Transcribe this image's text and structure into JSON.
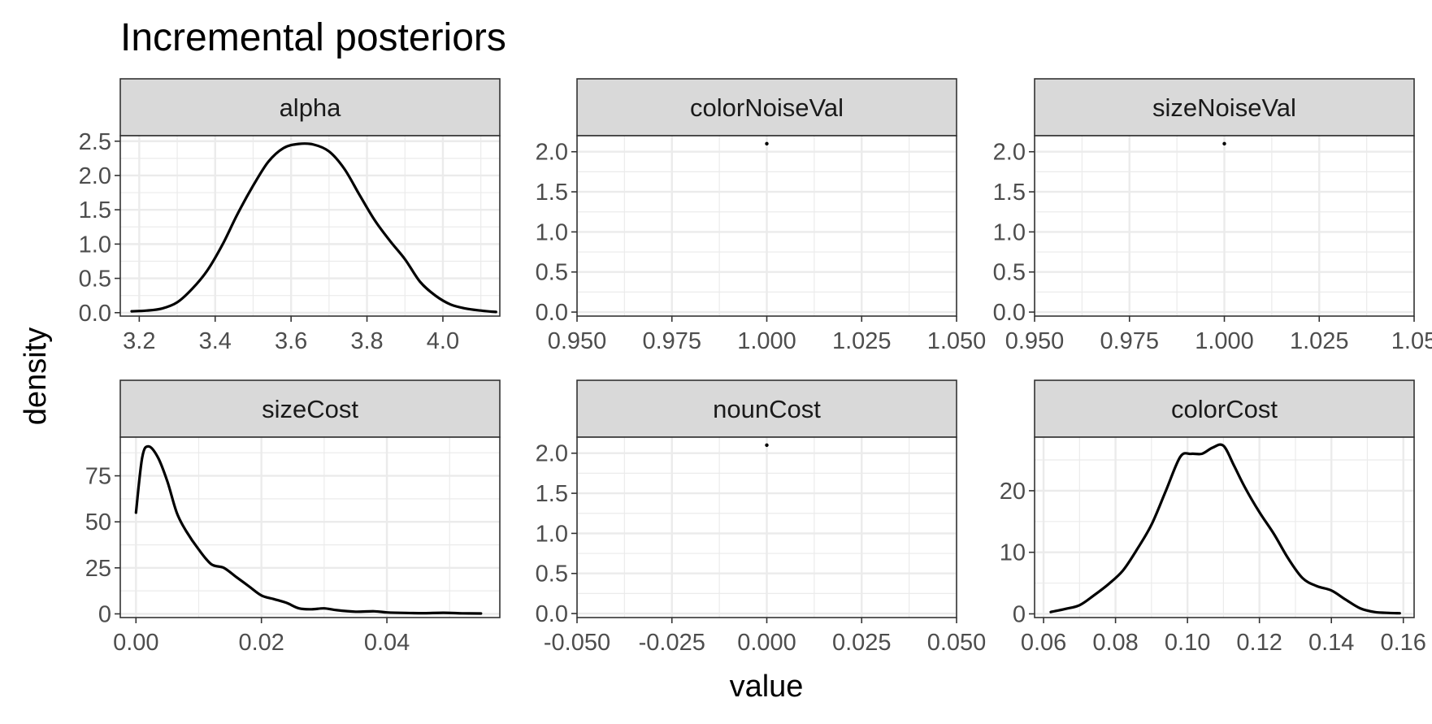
{
  "chart": {
    "title": "Incremental posteriors",
    "xlabel": "value",
    "ylabel": "density"
  },
  "chart_data": [
    {
      "type": "line",
      "facet": "alpha",
      "xlim": [
        3.15,
        4.15
      ],
      "ylim": [
        -0.05,
        2.58
      ],
      "xticks": [
        3.2,
        3.4,
        3.6,
        3.8,
        4.0
      ],
      "xtick_labels": [
        "3.2",
        "3.4",
        "3.6",
        "3.8",
        "4.0"
      ],
      "yticks": [
        0,
        0.5,
        1,
        1.5,
        2,
        2.5
      ],
      "ytick_labels": [
        "0.0",
        "0.5",
        "1.0",
        "1.5",
        "2.0",
        "2.5"
      ],
      "x": [
        3.18,
        3.22,
        3.26,
        3.3,
        3.34,
        3.38,
        3.42,
        3.46,
        3.5,
        3.54,
        3.58,
        3.62,
        3.66,
        3.7,
        3.74,
        3.78,
        3.82,
        3.86,
        3.9,
        3.94,
        3.98,
        4.02,
        4.06,
        4.1,
        4.14
      ],
      "y": [
        0.02,
        0.03,
        0.06,
        0.15,
        0.35,
        0.62,
        1.0,
        1.45,
        1.85,
        2.2,
        2.4,
        2.46,
        2.45,
        2.35,
        2.1,
        1.72,
        1.35,
        1.05,
        0.78,
        0.45,
        0.25,
        0.12,
        0.06,
        0.03,
        0.01
      ],
      "grid": true
    },
    {
      "type": "scatter",
      "facet": "colorNoiseVal",
      "xlim": [
        0.95,
        1.05
      ],
      "ylim": [
        -0.05,
        2.2
      ],
      "xticks": [
        0.95,
        0.975,
        1.0,
        1.025,
        1.05
      ],
      "xtick_labels": [
        "0.950",
        "0.975",
        "1.000",
        "1.025",
        "1.050"
      ],
      "yticks": [
        0,
        0.5,
        1,
        1.5,
        2
      ],
      "ytick_labels": [
        "0.0",
        "0.5",
        "1.0",
        "1.5",
        "2.0"
      ],
      "x": [
        1.0
      ],
      "y": [
        2.1
      ],
      "grid": true
    },
    {
      "type": "scatter",
      "facet": "sizeNoiseVal",
      "xlim": [
        0.95,
        1.05
      ],
      "ylim": [
        -0.05,
        2.2
      ],
      "xticks": [
        0.95,
        0.975,
        1.0,
        1.025,
        1.05
      ],
      "xtick_labels": [
        "0.950",
        "0.975",
        "1.000",
        "1.025",
        "1.05"
      ],
      "yticks": [
        0,
        0.5,
        1,
        1.5,
        2
      ],
      "ytick_labels": [
        "0.0",
        "0.5",
        "1.0",
        "1.5",
        "2.0"
      ],
      "x": [
        1.0
      ],
      "y": [
        2.1
      ],
      "grid": true
    },
    {
      "type": "line",
      "facet": "sizeCost",
      "xlim": [
        -0.0025,
        0.058
      ],
      "ylim": [
        -2,
        96
      ],
      "xticks": [
        0.0,
        0.02,
        0.04
      ],
      "xtick_labels": [
        "0.00",
        "0.02",
        "0.04"
      ],
      "yticks": [
        0,
        25,
        50,
        75
      ],
      "ytick_labels": [
        "0",
        "25",
        "50",
        "75"
      ],
      "x": [
        0.0,
        0.001,
        0.002,
        0.0035,
        0.005,
        0.0065,
        0.008,
        0.01,
        0.012,
        0.014,
        0.016,
        0.018,
        0.02,
        0.022,
        0.024,
        0.026,
        0.028,
        0.03,
        0.032,
        0.035,
        0.038,
        0.04,
        0.043,
        0.046,
        0.049,
        0.052,
        0.055
      ],
      "y": [
        55,
        85,
        91,
        85,
        72,
        55,
        45,
        35,
        27,
        25,
        20,
        15,
        10,
        8,
        6,
        3,
        2.5,
        3,
        2,
        1.2,
        1.4,
        0.8,
        0.5,
        0.4,
        0.6,
        0.3,
        0.2
      ],
      "grid": true
    },
    {
      "type": "scatter",
      "facet": "nounCost",
      "xlim": [
        -0.05,
        0.05
      ],
      "ylim": [
        -0.05,
        2.2
      ],
      "xticks": [
        -0.05,
        -0.025,
        0.0,
        0.025,
        0.05
      ],
      "xtick_labels": [
        "-0.050",
        "-0.025",
        "0.000",
        "0.025",
        "0.050"
      ],
      "yticks": [
        0,
        0.5,
        1,
        1.5,
        2
      ],
      "ytick_labels": [
        "0.0",
        "0.5",
        "1.0",
        "1.5",
        "2.0"
      ],
      "x": [
        0.0
      ],
      "y": [
        2.1
      ],
      "grid": true
    },
    {
      "type": "line",
      "facet": "colorCost",
      "xlim": [
        0.0575,
        0.163
      ],
      "ylim": [
        -0.6,
        28.7
      ],
      "xticks": [
        0.06,
        0.08,
        0.1,
        0.12,
        0.14,
        0.16
      ],
      "xtick_labels": [
        "0.06",
        "0.08",
        "0.10",
        "0.12",
        "0.14",
        "0.16"
      ],
      "yticks": [
        0,
        10,
        20
      ],
      "ytick_labels": [
        "0",
        "10",
        "20"
      ],
      "x": [
        0.062,
        0.066,
        0.07,
        0.074,
        0.078,
        0.082,
        0.086,
        0.09,
        0.094,
        0.098,
        0.101,
        0.104,
        0.107,
        0.11,
        0.113,
        0.116,
        0.12,
        0.124,
        0.128,
        0.132,
        0.136,
        0.14,
        0.144,
        0.148,
        0.152,
        0.156,
        0.159
      ],
      "y": [
        0.3,
        0.8,
        1.4,
        3.0,
        4.8,
        7.0,
        10.5,
        14.5,
        20.0,
        25.5,
        26.0,
        26.0,
        27.0,
        27.3,
        24.0,
        20.5,
        16.5,
        13.0,
        9.0,
        5.8,
        4.5,
        3.8,
        2.3,
        0.9,
        0.3,
        0.15,
        0.1
      ],
      "grid": true
    }
  ]
}
